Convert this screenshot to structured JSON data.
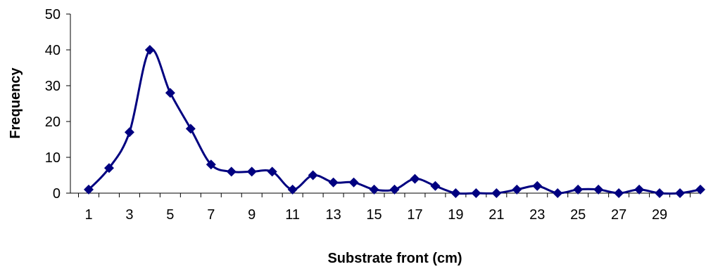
{
  "chart_data": {
    "type": "line",
    "title": "",
    "xlabel": "Substrate front (cm)",
    "ylabel": "Frequency",
    "ylim": [
      0,
      50
    ],
    "yticks": [
      0,
      10,
      20,
      30,
      40,
      50
    ],
    "xlim": [
      1,
      31
    ],
    "xticks": [
      1,
      3,
      5,
      7,
      9,
      11,
      13,
      15,
      17,
      19,
      21,
      23,
      25,
      27,
      29
    ],
    "grid": false,
    "legend": "none",
    "smooth": true,
    "series": [
      {
        "color": "#000080",
        "marker": "diamond",
        "x": [
          1,
          2,
          3,
          4,
          5,
          6,
          7,
          8,
          9,
          10,
          11,
          12,
          13,
          14,
          15,
          16,
          17,
          18,
          19,
          20,
          21,
          22,
          23,
          24,
          25,
          26,
          27,
          28,
          29,
          30,
          31
        ],
        "values": [
          1,
          7,
          17,
          40,
          28,
          18,
          8,
          6,
          6,
          6,
          1,
          5,
          3,
          3,
          1,
          1,
          4,
          2,
          0,
          0,
          0,
          1,
          2,
          0,
          1,
          1,
          0,
          1,
          0,
          0,
          1
        ]
      }
    ]
  }
}
